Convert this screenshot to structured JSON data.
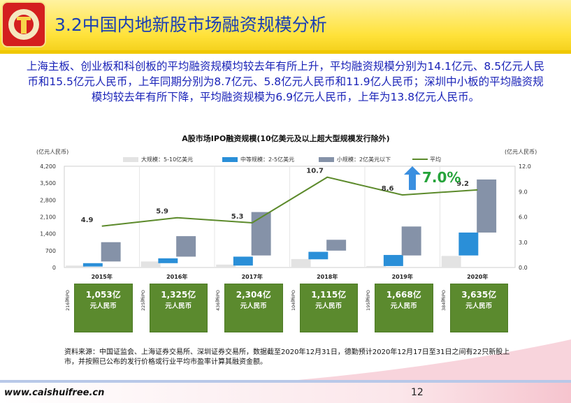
{
  "slide": {
    "title": "3.2中国内地新股市场融资规模分析",
    "intro": "上海主板、创业板和科创板的平均融资规模均较去年有所上升，平均融资规模分别为14.1亿元、8.5亿元人民币和15.5亿元人民币，上年同期分别为8.7亿元、5.8亿元人民币和11.9亿人民币；深圳中小板的平均融资规模均较去年有所下降，平均融资规模为6.9亿元人民币，上年为13.8亿元人民币。",
    "highlight_pct": "7.0%",
    "source": "资料来源：中国证监会、上海证券交易所、深圳证券交易所，数据截至2020年12月31日，德勤预计2020年12月17日至31日之间有22只新股上市，并按照已公布的发行价格或行业平均市盈率计算其融资金额。",
    "website": "www.caishuifree.cn",
    "page_number": "12"
  },
  "colors": {
    "title_text": "#1a3fb3",
    "intro_text": "#1a23b8",
    "large": "#e3e3e3",
    "medium": "#2a8fd8",
    "small": "#8592a8",
    "average": "#5c8a2b",
    "tile": "#5b8a2e",
    "pct": "#25a33a"
  },
  "chart_data": {
    "type": "bar",
    "title": "A股市场IPO融资规模(10亿美元及以上超大型规模发行除外)",
    "ylabel_left": "(亿元人民币)",
    "ylabel_right": "(亿元人民币)",
    "categories": [
      "2015年",
      "2016年",
      "2017年",
      "2018年",
      "2019年",
      "2020年"
    ],
    "left_axis": {
      "ticks": [
        "0",
        "700",
        "1,400",
        "2,100",
        "2,800",
        "3,500",
        "4,200"
      ],
      "range": [
        0,
        4200
      ]
    },
    "right_axis": {
      "ticks": [
        "0.0",
        "3.0",
        "6.0",
        "9.0",
        "12.0"
      ],
      "range": [
        0,
        12
      ]
    },
    "series": [
      {
        "name": "大规模：5-10亿美元",
        "kind": "bar",
        "values": [
          [
            0,
            80
          ],
          [
            0,
            250
          ],
          [
            0,
            120
          ],
          [
            0,
            350
          ],
          [
            0,
            60
          ],
          [
            0,
            480
          ]
        ]
      },
      {
        "name": "中等规模：2-5亿美元",
        "kind": "bar",
        "values": [
          [
            40,
            180
          ],
          [
            180,
            380
          ],
          [
            80,
            450
          ],
          [
            340,
            650
          ],
          [
            60,
            520
          ],
          [
            500,
            1450
          ]
        ]
      },
      {
        "name": "小规模：2亿美元以下",
        "kind": "bar",
        "values": [
          [
            250,
            1050
          ],
          [
            450,
            1300
          ],
          [
            500,
            2300
          ],
          [
            700,
            1150
          ],
          [
            500,
            1700
          ],
          [
            1450,
            3650
          ]
        ]
      },
      {
        "name": "平均",
        "kind": "line",
        "axis": "right",
        "values": [
          4.9,
          5.9,
          5.3,
          10.7,
          8.6,
          9.2
        ]
      }
    ],
    "line_labels": [
      "4.9",
      "5.9",
      "5.3",
      "10.7",
      "8.6",
      "9.2"
    ],
    "totals": [
      {
        "ipo_label": "216家IPO",
        "value": "1,053亿",
        "unit": "元人民币"
      },
      {
        "ipo_label": "225家IPO",
        "value": "1,325亿",
        "unit": "元人民币"
      },
      {
        "ipo_label": "436家IPO",
        "value": "2,304亿",
        "unit": "元人民币"
      },
      {
        "ipo_label": "104家IPO",
        "value": "1,115亿",
        "unit": "元人民币"
      },
      {
        "ipo_label": "195家IPO",
        "value": "1,668亿",
        "unit": "元人民币"
      },
      {
        "ipo_label": "384家IPO",
        "value": "3,635亿",
        "unit": "元人民币"
      }
    ]
  }
}
